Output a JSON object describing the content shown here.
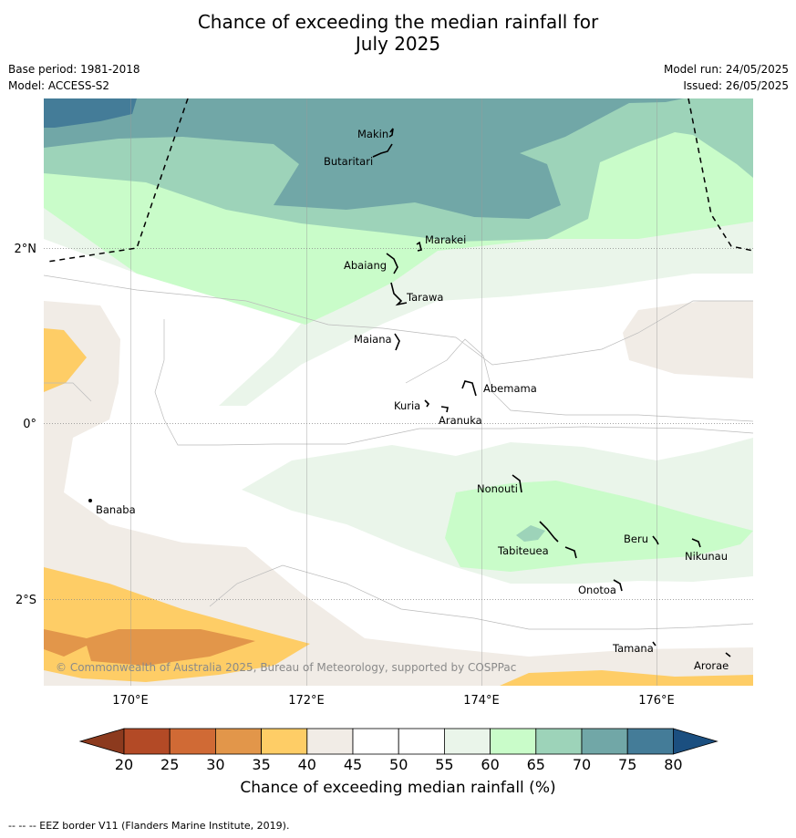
{
  "header": {
    "title_line1": "Chance of exceeding the median rainfall for",
    "title_line2": "July 2025",
    "base_period": "Base period: 1981-2018",
    "model": "Model: ACCESS-S2",
    "model_run": "Model run: 24/05/2025",
    "issued": "Issued: 26/05/2025"
  },
  "map": {
    "lon_labels": [
      "170°E",
      "172°E",
      "174°E",
      "176°E"
    ],
    "lat_labels": [
      "2°N",
      "0°",
      "2°S"
    ],
    "places": [
      "Makin",
      "Butaritari",
      "Marakei",
      "Abaiang",
      "Tarawa",
      "Maiana",
      "Abemama",
      "Kuria",
      "Aranuka",
      "Banaba",
      "Nonouti",
      "Tabiteuea",
      "Beru",
      "Nikunau",
      "Onotoa",
      "Tamana",
      "Arorae"
    ],
    "copyright": "© Commonwealth of Australia 2025, Bureau of Meteorology, supported by COSPPac"
  },
  "colorbar": {
    "ticks": [
      "20",
      "25",
      "30",
      "35",
      "40",
      "45",
      "50",
      "55",
      "60",
      "65",
      "70",
      "75",
      "80"
    ],
    "colors": [
      "#b34a26",
      "#d06a35",
      "#e2964a",
      "#fecd66",
      "#f1ece6",
      "#ffffff",
      "#ffffff",
      "#eaf5ea",
      "#c9fcc9",
      "#9dd3b9",
      "#71a7a7",
      "#447c98"
    ],
    "under_color": "#8c3a1e",
    "over_color": "#1b4f80",
    "label": "Chance of exceeding median rainfall (%)"
  },
  "footer": {
    "eez_note": "--  --  -- EEZ border V11 (Flanders Marine Institute, 2019)."
  }
}
